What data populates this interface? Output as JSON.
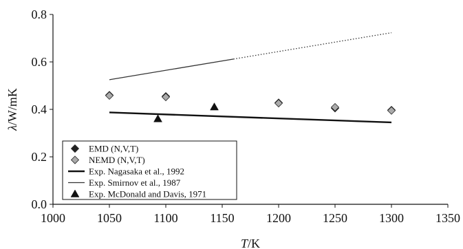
{
  "chart_data": {
    "type": "scatter",
    "title": "",
    "xlabel_symbol": "T",
    "xlabel_unit": "/K",
    "ylabel_symbol": "λ",
    "ylabel_unit": "/W/mK",
    "xlim": [
      1000,
      1350
    ],
    "ylim": [
      0.0,
      0.8
    ],
    "xticks": [
      "1000",
      "1050",
      "1100",
      "1150",
      "1200",
      "1250",
      "1300",
      "1350"
    ],
    "yticks": [
      "0.0",
      "0.2",
      "0.4",
      "0.6",
      "0.8"
    ],
    "grid": false,
    "legend_position": "bottom-left",
    "series": [
      {
        "name": "EMD (N,V,T)",
        "kind": "markers",
        "marker": "diamond",
        "color": "#222222",
        "x": [
          1050,
          1100,
          1200,
          1250,
          1300
        ],
        "y": [
          0.46,
          0.455,
          0.428,
          0.405,
          0.397
        ]
      },
      {
        "name": "NEMD (N,V,T)",
        "kind": "markers",
        "marker": "diamond",
        "color": "#aaaaaa",
        "x": [
          1050,
          1100,
          1200,
          1250,
          1300
        ],
        "y": [
          0.458,
          0.452,
          0.426,
          0.409,
          0.395
        ]
      },
      {
        "name": "Exp. Nagasaka et al., 1992",
        "kind": "line",
        "style": "thick",
        "color": "#111111",
        "x": [
          1050,
          1300
        ],
        "y": [
          0.387,
          0.345
        ]
      },
      {
        "name": "Exp. Smirnov et al., 1987",
        "kind": "line",
        "style": "thin",
        "color": "#333333",
        "x": [
          1050,
          1160
        ],
        "y": [
          0.525,
          0.612
        ],
        "extrapolation": {
          "x": [
            1160,
            1300
          ],
          "y": [
            0.612,
            0.723
          ]
        }
      },
      {
        "name": "Exp. McDonald and Davis, 1971",
        "kind": "markers",
        "marker": "triangle",
        "color": "#111111",
        "x": [
          1093,
          1143
        ],
        "y": [
          0.36,
          0.41
        ]
      }
    ]
  }
}
